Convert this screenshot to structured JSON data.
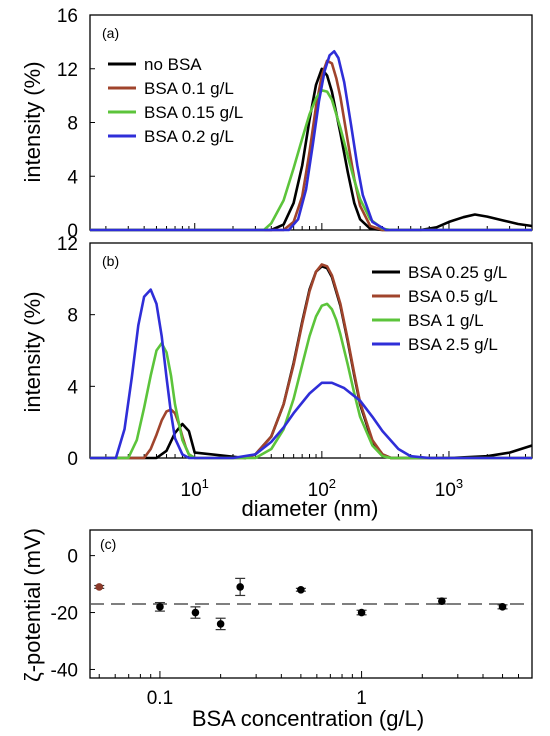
{
  "chart_data": [
    {
      "type": "line",
      "panel_label": "(a)",
      "xscale": "log",
      "xlim": [
        1.5,
        4500
      ],
      "ylim": [
        0,
        16
      ],
      "ylabel": "intensity (%)",
      "yticks": [
        "0",
        "4",
        "8",
        "12",
        "16"
      ],
      "legend_position": "top-left",
      "series": [
        {
          "name": "no BSA",
          "color": "#000000",
          "x": [
            1.5,
            40,
            50,
            60,
            70,
            80,
            90,
            100,
            110,
            120,
            140,
            160,
            180,
            200,
            240,
            300,
            600,
            800,
            1000,
            1300,
            1600,
            2000,
            2700,
            3500,
            4500
          ],
          "y": [
            0,
            0,
            0.4,
            2,
            4.8,
            8.2,
            10.8,
            12.0,
            11.5,
            10.3,
            7.2,
            4.3,
            2.0,
            0.8,
            0.1,
            0,
            0,
            0.2,
            0.6,
            0.95,
            1.15,
            1.0,
            0.7,
            0.45,
            0.3
          ]
        },
        {
          "name": "BSA 0.1 g/L",
          "color": "#a0442c",
          "x": [
            1.5,
            50,
            60,
            70,
            80,
            90,
            100,
            110,
            120,
            130,
            140,
            160,
            180,
            200,
            240,
            300,
            4500
          ],
          "y": [
            0,
            0,
            0.6,
            2.5,
            5.8,
            9.2,
            11.5,
            12.6,
            12.4,
            11.3,
            9.9,
            6.6,
            3.8,
            1.8,
            0.3,
            0,
            0
          ]
        },
        {
          "name": "BSA 0.15 g/L",
          "color": "#5cc43b",
          "x": [
            1.5,
            35,
            40,
            50,
            60,
            70,
            80,
            90,
            100,
            110,
            120,
            140,
            160,
            180,
            200,
            240,
            300,
            350,
            4500
          ],
          "y": [
            0,
            0,
            0.5,
            2.2,
            4.6,
            6.8,
            8.6,
            9.8,
            10.4,
            10.3,
            9.7,
            7.6,
            5.5,
            3.7,
            2.3,
            0.8,
            0.1,
            0,
            0
          ]
        },
        {
          "name": "BSA 0.2 g/L",
          "color": "#2f2ed8",
          "x": [
            1.5,
            55,
            65,
            75,
            85,
            95,
            105,
            115,
            125,
            135,
            150,
            170,
            190,
            210,
            250,
            320,
            4500
          ],
          "y": [
            0,
            0,
            0.8,
            3.0,
            6.4,
            9.6,
            11.8,
            13.0,
            13.3,
            12.8,
            11.0,
            7.8,
            4.8,
            2.6,
            0.6,
            0,
            0
          ]
        }
      ]
    },
    {
      "type": "line",
      "panel_label": "(b)",
      "xscale": "log",
      "xlim": [
        1.5,
        4500
      ],
      "ylim": [
        0,
        12
      ],
      "xlabel": "diameter (nm)",
      "ylabel": "intensity (%)",
      "yticks": [
        "0",
        "4",
        "8",
        "12"
      ],
      "xticks": [
        "10^1",
        "10^2",
        "10^3"
      ],
      "legend_position": "top-right",
      "series": [
        {
          "name": "BSA 0.25 g/L",
          "color": "#000000",
          "x": [
            1.5,
            5,
            6,
            7,
            8,
            9,
            10,
            25,
            30,
            40,
            50,
            60,
            70,
            80,
            90,
            100,
            110,
            120,
            140,
            160,
            180,
            200,
            250,
            300,
            350,
            1000,
            2000,
            3000,
            4500
          ],
          "y": [
            0,
            0,
            0.4,
            1.4,
            1.9,
            1.5,
            0.3,
            0,
            0.2,
            1.2,
            3.0,
            5.3,
            7.6,
            9.4,
            10.4,
            10.7,
            10.6,
            10.1,
            8.5,
            6.5,
            4.6,
            3.0,
            0.9,
            0.2,
            0,
            0,
            0.1,
            0.3,
            0.7
          ]
        },
        {
          "name": "BSA 0.5 g/L",
          "color": "#a0442c",
          "x": [
            1.5,
            4,
            4.5,
            5,
            5.5,
            6,
            6.5,
            7,
            7.5,
            8,
            8.5,
            9,
            10,
            25,
            30,
            40,
            50,
            60,
            70,
            80,
            90,
            100,
            110,
            120,
            140,
            160,
            180,
            200,
            250,
            300,
            350,
            4500
          ],
          "y": [
            0,
            0,
            0.5,
            1.3,
            2.1,
            2.6,
            2.7,
            2.5,
            1.9,
            1.2,
            0.6,
            0.2,
            0,
            0,
            0.2,
            1.2,
            3.0,
            5.2,
            7.5,
            9.3,
            10.4,
            10.8,
            10.7,
            10.2,
            8.6,
            6.6,
            4.7,
            3.1,
            1.0,
            0.2,
            0,
            0
          ]
        },
        {
          "name": "BSA 1 g/L",
          "color": "#5cc43b",
          "x": [
            1.5,
            3,
            3.5,
            4,
            4.5,
            5,
            5.5,
            6,
            6.5,
            7,
            8,
            9,
            10,
            30,
            40,
            50,
            60,
            70,
            80,
            90,
            100,
            110,
            120,
            130,
            140,
            160,
            180,
            200,
            250,
            300,
            350,
            4500
          ],
          "y": [
            0,
            0,
            1.0,
            2.8,
            4.6,
            6.0,
            6.4,
            5.9,
            4.6,
            3.0,
            1.0,
            0.2,
            0,
            0,
            0.5,
            1.6,
            3.3,
            5.2,
            6.8,
            7.9,
            8.5,
            8.6,
            8.3,
            7.7,
            6.9,
            5.2,
            3.6,
            2.3,
            0.7,
            0.1,
            0,
            0
          ]
        },
        {
          "name": "BSA 2.5 g/L",
          "color": "#2f2ed8",
          "x": [
            1.5,
            2.4,
            2.8,
            3.2,
            3.6,
            4.0,
            4.5,
            5.0,
            5.5,
            6.0,
            6.5,
            7.0,
            8.0,
            9.0,
            11,
            20,
            30,
            40,
            50,
            60,
            80,
            100,
            120,
            150,
            200,
            250,
            300,
            400,
            500,
            700,
            1000,
            4500
          ],
          "y": [
            0,
            0,
            1.6,
            4.5,
            7.4,
            9.0,
            9.4,
            8.6,
            6.8,
            4.5,
            2.5,
            1.1,
            0.2,
            0,
            0,
            0,
            0.2,
            0.9,
            1.7,
            2.5,
            3.6,
            4.2,
            4.2,
            3.9,
            3.2,
            2.3,
            1.5,
            0.5,
            0.1,
            0,
            0,
            0
          ]
        }
      ]
    },
    {
      "type": "scatter",
      "panel_label": "(c)",
      "xscale": "log",
      "xlim": [
        0.045,
        7
      ],
      "ylim": [
        -43,
        9
      ],
      "xlabel": "BSA concentration (g/L)",
      "ylabel": "ζ-potential (mV)",
      "yticks": [
        "0",
        "-20",
        "-40"
      ],
      "xticks": [
        "0.1",
        "1"
      ],
      "reference_line": -17,
      "points": [
        {
          "x": 0.05,
          "y": -11,
          "err": 0.5,
          "color": "#8b3a2a"
        },
        {
          "x": 0.1,
          "y": -18,
          "err": 1.5,
          "color": "#000000"
        },
        {
          "x": 0.15,
          "y": -20,
          "err": 2.0,
          "color": "#000000"
        },
        {
          "x": 0.2,
          "y": -24,
          "err": 2.0,
          "color": "#000000"
        },
        {
          "x": 0.25,
          "y": -11,
          "err": 3.0,
          "color": "#000000"
        },
        {
          "x": 0.5,
          "y": -12,
          "err": 0.5,
          "color": "#000000"
        },
        {
          "x": 1.0,
          "y": -20,
          "err": 0.8,
          "color": "#000000"
        },
        {
          "x": 2.5,
          "y": -16,
          "err": 1.0,
          "color": "#000000"
        },
        {
          "x": 5.0,
          "y": -18,
          "err": 0.7,
          "color": "#000000"
        }
      ]
    }
  ]
}
